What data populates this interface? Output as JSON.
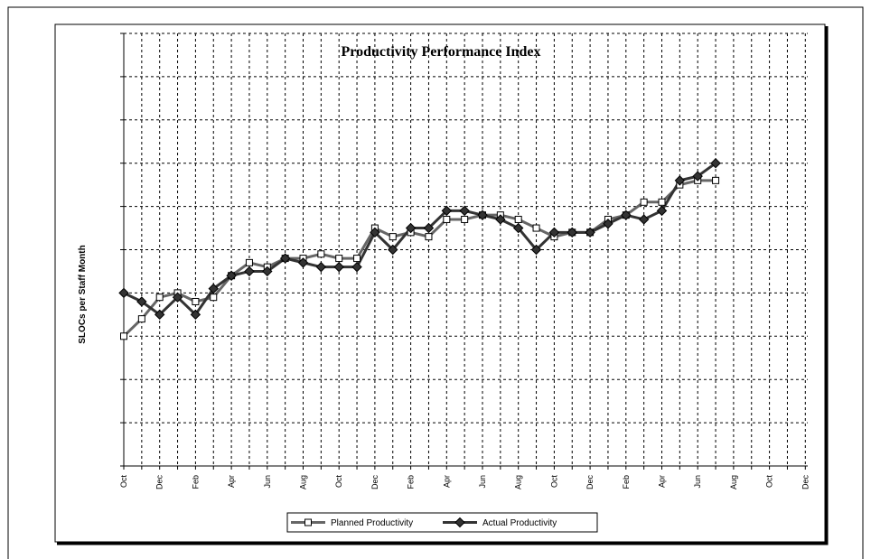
{
  "chart_data": {
    "type": "line",
    "title": "Productivity Performance Index",
    "y_label": "SLOCs per Staff Month",
    "categories": [
      "Oct",
      null,
      "Dec",
      null,
      "Feb",
      null,
      "Apr",
      null,
      "Jun",
      null,
      "Aug",
      null,
      "Oct",
      null,
      "Dec",
      null,
      "Feb",
      null,
      "Apr",
      null,
      "Jun",
      null,
      "Aug",
      null,
      "Oct",
      null,
      "Dec",
      null,
      "Feb",
      null,
      "Apr",
      null,
      "Jun",
      null,
      "Aug",
      null,
      "Oct",
      null,
      "Dec"
    ],
    "series": [
      {
        "name": "Planned Productivity",
        "color": "#666666",
        "marker": "square",
        "values": [
          3.0,
          3.4,
          3.9,
          4.0,
          3.8,
          3.9,
          4.4,
          4.7,
          4.6,
          4.8,
          4.8,
          4.9,
          4.8,
          4.8,
          5.5,
          5.3,
          5.4,
          5.3,
          5.7,
          5.7,
          5.8,
          5.8,
          5.7,
          5.5,
          5.3,
          5.4,
          5.4,
          5.7,
          5.8,
          6.1,
          6.1,
          6.5,
          6.6,
          6.6,
          null,
          null,
          null,
          null,
          null
        ]
      },
      {
        "name": "Actual Productivity",
        "color": "#333333",
        "marker": "diamond",
        "values": [
          4.0,
          3.8,
          3.5,
          3.9,
          3.5,
          4.1,
          4.4,
          4.5,
          4.5,
          4.8,
          4.7,
          4.6,
          4.6,
          4.6,
          5.4,
          5.0,
          5.5,
          5.5,
          5.9,
          5.9,
          5.8,
          5.7,
          5.5,
          5.0,
          5.4,
          5.4,
          5.4,
          5.6,
          5.8,
          5.7,
          5.9,
          6.6,
          6.7,
          7.0,
          null,
          null,
          null,
          null,
          null
        ]
      }
    ],
    "ylim": [
      0,
      10
    ],
    "yticks": [
      0,
      1,
      2,
      3,
      4,
      5,
      6,
      7,
      8,
      9,
      10
    ],
    "grid": true,
    "legend": "bottom"
  }
}
